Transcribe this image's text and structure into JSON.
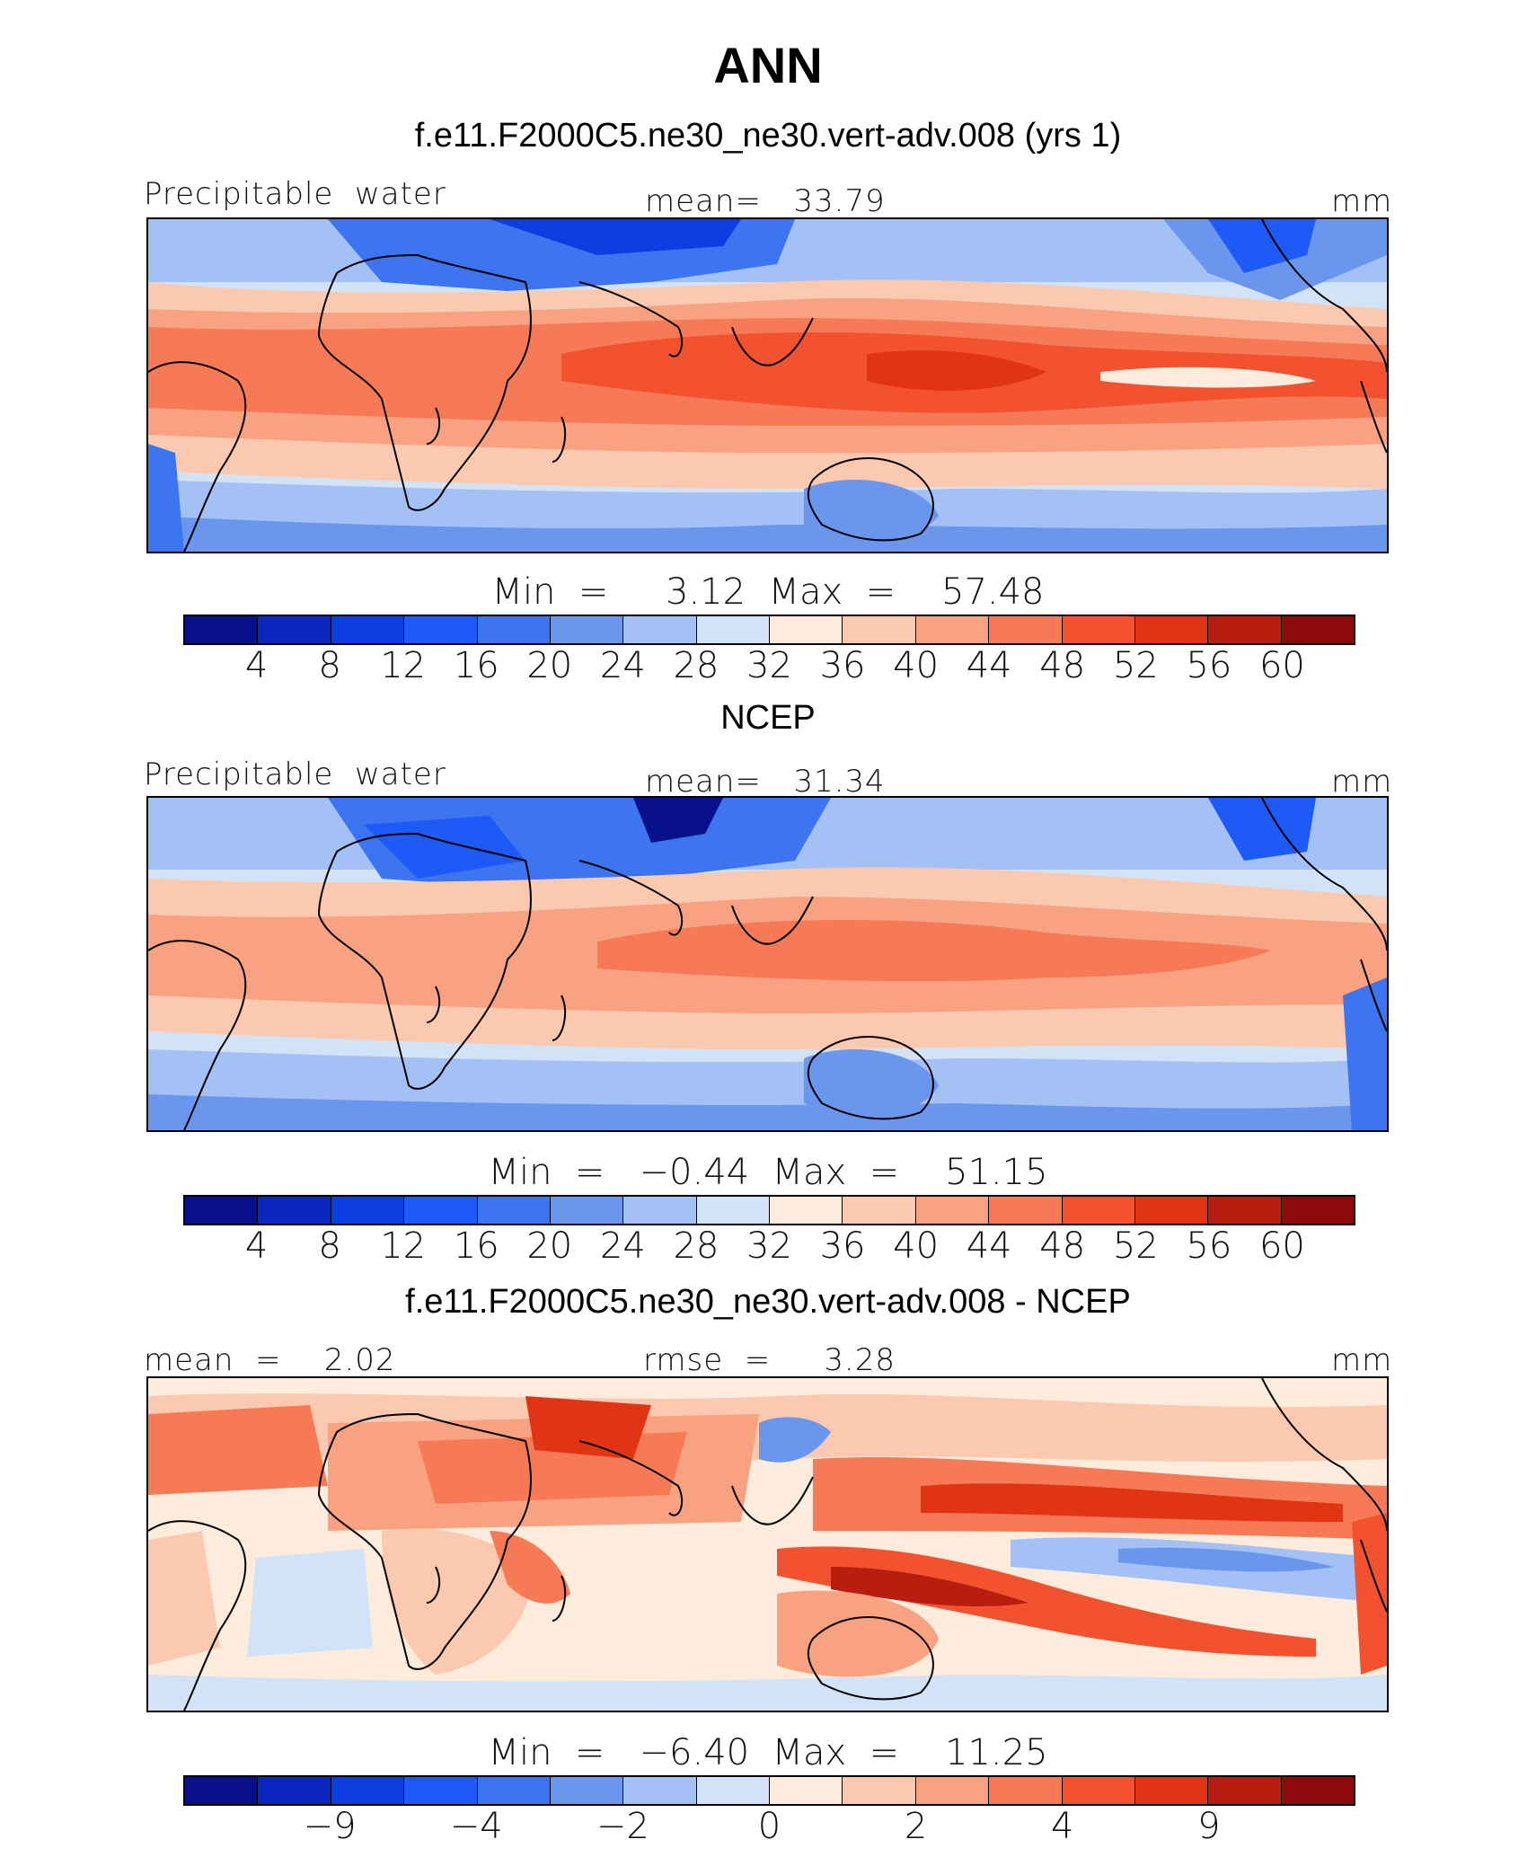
{
  "page": {
    "title": "ANN"
  },
  "panels": [
    {
      "subtitle": "f.e11.F2000C5.ne30_ne30.vert-adv.008 (yrs 1)",
      "left_label": "Precipitable  water",
      "center_label": "mean=   33.79",
      "units": "mm",
      "minmax": "Min  =     3.12  Max  =    57.48",
      "ticks": [
        "4",
        "8",
        "12",
        "16",
        "20",
        "24",
        "28",
        "32",
        "36",
        "40",
        "44",
        "48",
        "52",
        "56",
        "60"
      ]
    },
    {
      "subtitle": "NCEP",
      "left_label": "Precipitable  water",
      "center_label": "mean=   31.34",
      "units": "mm",
      "minmax": "Min  =   −0.44  Max  =    51.15",
      "ticks": [
        "4",
        "8",
        "12",
        "16",
        "20",
        "24",
        "28",
        "32",
        "36",
        "40",
        "44",
        "48",
        "52",
        "56",
        "60"
      ]
    },
    {
      "subtitle": "f.e11.F2000C5.ne30_ne30.vert-adv.008 - NCEP",
      "left_label": "mean  =    2.02",
      "center_label": "rmse  =     3.28",
      "units": "mm",
      "minmax": "Min  =   −6.40  Max  =    11.25",
      "ticks": [
        "−9",
        "−4",
        "−2",
        "0",
        "2",
        "4",
        "9"
      ]
    }
  ],
  "colors": {
    "abs_scale": [
      "#08108c",
      "#0a28c0",
      "#0d3ee0",
      "#1e5af5",
      "#3d74ef",
      "#6a96ee",
      "#a3c1f5",
      "#d2e3f8",
      "#fdebdc",
      "#fbc9b0",
      "#f8a282",
      "#f67a56",
      "#f2522f",
      "#e13415",
      "#b81d10",
      "#8c0a0a"
    ],
    "land_outline": "#000000"
  },
  "chart_data": [
    {
      "type": "heatmap",
      "title": "f.e11.F2000C5.ne30_ne30.vert-adv.008 (yrs 1)",
      "variable": "Precipitable water",
      "units": "mm",
      "mean": 33.79,
      "min": 3.12,
      "max": 57.48,
      "contour_levels": [
        4,
        8,
        12,
        16,
        20,
        24,
        28,
        32,
        36,
        40,
        44,
        48,
        52,
        56,
        60
      ],
      "xrange": [
        -180,
        180
      ],
      "yrange": [
        -45,
        45
      ]
    },
    {
      "type": "heatmap",
      "title": "NCEP",
      "variable": "Precipitable water",
      "units": "mm",
      "mean": 31.34,
      "min": -0.44,
      "max": 51.15,
      "contour_levels": [
        4,
        8,
        12,
        16,
        20,
        24,
        28,
        32,
        36,
        40,
        44,
        48,
        52,
        56,
        60
      ],
      "xrange": [
        -180,
        180
      ],
      "yrange": [
        -45,
        45
      ]
    },
    {
      "type": "heatmap",
      "title": "f.e11.F2000C5.ne30_ne30.vert-adv.008 - NCEP",
      "units": "mm",
      "mean": 2.02,
      "rmse": 3.28,
      "min": -6.4,
      "max": 11.25,
      "contour_levels": [
        -9,
        -4,
        -2,
        0,
        2,
        4,
        9
      ],
      "xrange": [
        -180,
        180
      ],
      "yrange": [
        -45,
        45
      ]
    }
  ]
}
